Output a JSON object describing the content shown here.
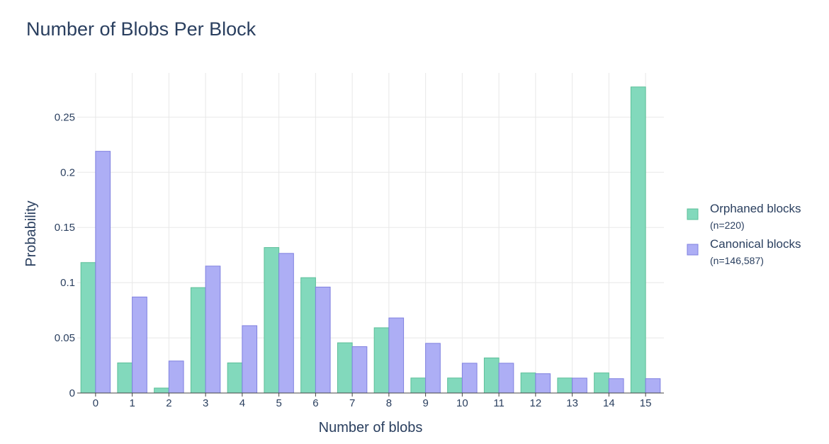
{
  "chart_data": {
    "type": "bar",
    "title": "Number of Blobs Per Block",
    "xlabel": "Number of blobs",
    "ylabel": "Probability",
    "categories": [
      "0",
      "1",
      "2",
      "3",
      "4",
      "5",
      "6",
      "7",
      "8",
      "9",
      "10",
      "11",
      "12",
      "13",
      "14",
      "15"
    ],
    "yticks": [
      {
        "value": 0,
        "label": "0"
      },
      {
        "value": 0.05,
        "label": "0.05"
      },
      {
        "value": 0.1,
        "label": "0.1"
      },
      {
        "value": 0.15,
        "label": "0.15"
      },
      {
        "value": 0.2,
        "label": "0.2"
      },
      {
        "value": 0.25,
        "label": "0.25"
      }
    ],
    "ylim": [
      0,
      0.29
    ],
    "grid": true,
    "legend_position": "right",
    "series": [
      {
        "name": "Orphaned blocks",
        "subtitle": "(n=220)",
        "color": "#82d9bc",
        "stroke": "#5bbf98",
        "values": [
          0.1182,
          0.0273,
          0.0045,
          0.0955,
          0.0273,
          0.1318,
          0.1045,
          0.0455,
          0.0591,
          0.0136,
          0.0136,
          0.0318,
          0.0182,
          0.0136,
          0.0182,
          0.2773
        ]
      },
      {
        "name": "Canonical blocks",
        "subtitle": "(n=146,587)",
        "color": "#adaef5",
        "stroke": "#7f80e0",
        "values": [
          0.219,
          0.087,
          0.029,
          0.115,
          0.061,
          0.1265,
          0.096,
          0.042,
          0.068,
          0.045,
          0.027,
          0.027,
          0.0175,
          0.0135,
          0.013,
          0.013
        ]
      }
    ]
  }
}
